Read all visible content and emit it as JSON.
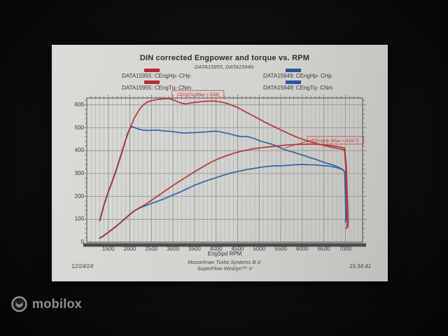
{
  "paper": {
    "title": "DIN corrected Engpower and torque vs. RPM",
    "subtitle": "DATA15955, DATA15949.",
    "footer": {
      "date": "12/24/24",
      "company": "Mosselman Turbo Systems B.V.",
      "software": "SuperFlow WinDyn™ V",
      "time": "15:34:41"
    }
  },
  "legend": {
    "left": [
      {
        "label": "DATA15955: CEngHp-  CHp",
        "color": "#b12f2f"
      },
      {
        "label": "DATA15955: CEngTq-  CNm",
        "color": "#b12f2f"
      }
    ],
    "right": [
      {
        "label": "DATA15949: CEngHp-  CHp",
        "color": "#2a55a0"
      },
      {
        "label": "DATA15949: CEngTq-  CNm",
        "color": "#2a55a0"
      }
    ]
  },
  "watermark": {
    "brand": "mobilox"
  },
  "chart_data": {
    "type": "line",
    "title": "DIN corrected Engpower and torque vs. RPM",
    "xlabel": "EngSpd  RPM",
    "ylabel": "",
    "x_range": [
      1000,
      7400
    ],
    "y_range": [
      0,
      630
    ],
    "x_ticks": [
      1500,
      2000,
      2500,
      3000,
      3500,
      4000,
      4500,
      5000,
      5500,
      6000,
      6500,
      7000
    ],
    "y_ticks": [
      0,
      100,
      200,
      300,
      400,
      500,
      600
    ],
    "grid": "vertical minor every 100 RPM, horizontal every 100 units",
    "legend_position": "top",
    "colors": {
      "red_series": "#b03434",
      "blue_series": "#2f5fa3",
      "annotation": "#c03434",
      "grid_minor": "#acaca8",
      "grid_major": "#8f8f8b",
      "frame": "#55555a",
      "axis_bar": "#4c4c4a"
    },
    "annotations": [
      {
        "text": "CEngTq [Max = 628]",
        "color": "#c03434",
        "rpm": 2980,
        "value": 663,
        "w": 74,
        "h": 11
      },
      {
        "text": "CEngHp [Max = 428.7]",
        "color": "#c03434",
        "rpm": 6120,
        "value": 462,
        "w": 80,
        "h": 11,
        "leader": [
          [
            5600,
            412
          ],
          [
            6280,
            450
          ]
        ]
      }
    ],
    "series": [
      {
        "name": "DATA15949: CEngTq- CNm",
        "color": "#2f5fa3",
        "points": [
          [
            1300,
            93
          ],
          [
            1400,
            162
          ],
          [
            1500,
            219
          ],
          [
            1600,
            269
          ],
          [
            1700,
            323
          ],
          [
            1800,
            383
          ],
          [
            1900,
            446
          ],
          [
            1950,
            477
          ],
          [
            2000,
            497
          ],
          [
            2050,
            505
          ],
          [
            2100,
            502
          ],
          [
            2200,
            494
          ],
          [
            2300,
            490
          ],
          [
            2400,
            488
          ],
          [
            2500,
            489
          ],
          [
            2600,
            490
          ],
          [
            2700,
            488
          ],
          [
            2800,
            486
          ],
          [
            2900,
            485
          ],
          [
            3000,
            483
          ],
          [
            3100,
            480
          ],
          [
            3200,
            478
          ],
          [
            3300,
            477
          ],
          [
            3400,
            478
          ],
          [
            3500,
            479
          ],
          [
            3600,
            480
          ],
          [
            3700,
            481
          ],
          [
            3800,
            482
          ],
          [
            3900,
            484
          ],
          [
            4000,
            485
          ],
          [
            4100,
            482
          ],
          [
            4200,
            478
          ],
          [
            4300,
            474
          ],
          [
            4400,
            469
          ],
          [
            4500,
            464
          ],
          [
            4600,
            461
          ],
          [
            4700,
            462
          ],
          [
            4800,
            458
          ],
          [
            4900,
            452
          ],
          [
            5000,
            444
          ],
          [
            5100,
            438
          ],
          [
            5200,
            433
          ],
          [
            5300,
            428
          ],
          [
            5400,
            420
          ],
          [
            5500,
            412
          ],
          [
            5600,
            404
          ],
          [
            5700,
            398
          ],
          [
            5800,
            393
          ],
          [
            5900,
            387
          ],
          [
            6000,
            381
          ],
          [
            6100,
            375
          ],
          [
            6200,
            368
          ],
          [
            6300,
            363
          ],
          [
            6400,
            356
          ],
          [
            6500,
            349
          ],
          [
            6600,
            343
          ],
          [
            6700,
            338
          ],
          [
            6800,
            331
          ],
          [
            6900,
            322
          ],
          [
            6950,
            316
          ],
          [
            6985,
            305
          ],
          [
            7000,
            200
          ],
          [
            7010,
            105
          ],
          [
            6998,
            88
          ]
        ]
      },
      {
        "name": "DATA15949: CEngHp- CHp",
        "color": "#2f5fa3",
        "points": [
          [
            1300,
            17
          ],
          [
            1400,
            29
          ],
          [
            1500,
            43
          ],
          [
            1600,
            57
          ],
          [
            1700,
            72
          ],
          [
            1800,
            88
          ],
          [
            1900,
            104
          ],
          [
            2000,
            121
          ],
          [
            2100,
            136
          ],
          [
            2200,
            147
          ],
          [
            2300,
            155
          ],
          [
            2400,
            162
          ],
          [
            2500,
            169
          ],
          [
            2600,
            176
          ],
          [
            2700,
            183
          ],
          [
            2800,
            190
          ],
          [
            2900,
            198
          ],
          [
            3000,
            206
          ],
          [
            3100,
            214
          ],
          [
            3200,
            222
          ],
          [
            3300,
            231
          ],
          [
            3400,
            240
          ],
          [
            3500,
            249
          ],
          [
            3600,
            256
          ],
          [
            3700,
            263
          ],
          [
            3800,
            270
          ],
          [
            3900,
            276
          ],
          [
            4000,
            282
          ],
          [
            4100,
            288
          ],
          [
            4200,
            294
          ],
          [
            4300,
            300
          ],
          [
            4400,
            305
          ],
          [
            4500,
            309
          ],
          [
            4600,
            313
          ],
          [
            4700,
            317
          ],
          [
            4800,
            320
          ],
          [
            4900,
            323
          ],
          [
            5000,
            326
          ],
          [
            5100,
            329
          ],
          [
            5200,
            331
          ],
          [
            5300,
            333
          ],
          [
            5400,
            334
          ],
          [
            5500,
            333
          ],
          [
            5600,
            335
          ],
          [
            5700,
            336
          ],
          [
            5800,
            338
          ],
          [
            5900,
            339
          ],
          [
            6000,
            340
          ],
          [
            6100,
            339
          ],
          [
            6200,
            338
          ],
          [
            6300,
            338
          ],
          [
            6400,
            336
          ],
          [
            6500,
            334
          ],
          [
            6600,
            333
          ],
          [
            6700,
            330
          ],
          [
            6800,
            326
          ],
          [
            6900,
            320
          ],
          [
            6950,
            315
          ],
          [
            6985,
            306
          ],
          [
            7005,
            200
          ],
          [
            7015,
            108
          ],
          [
            7003,
            90
          ]
        ]
      },
      {
        "name": "DATA15955: CEngTq- CNm",
        "color": "#b03434",
        "points": [
          [
            1300,
            95
          ],
          [
            1400,
            165
          ],
          [
            1500,
            222
          ],
          [
            1600,
            272
          ],
          [
            1700,
            326
          ],
          [
            1800,
            386
          ],
          [
            1900,
            446
          ],
          [
            2000,
            498
          ],
          [
            2100,
            541
          ],
          [
            2200,
            574
          ],
          [
            2300,
            598
          ],
          [
            2400,
            612
          ],
          [
            2500,
            618
          ],
          [
            2600,
            622
          ],
          [
            2700,
            625
          ],
          [
            2800,
            627
          ],
          [
            2900,
            628
          ],
          [
            3000,
            622
          ],
          [
            3100,
            614
          ],
          [
            3200,
            607
          ],
          [
            3300,
            604
          ],
          [
            3400,
            608
          ],
          [
            3500,
            611
          ],
          [
            3600,
            613
          ],
          [
            3700,
            615
          ],
          [
            3800,
            616
          ],
          [
            3900,
            617
          ],
          [
            4000,
            616
          ],
          [
            4100,
            613
          ],
          [
            4200,
            609
          ],
          [
            4300,
            603
          ],
          [
            4400,
            596
          ],
          [
            4500,
            588
          ],
          [
            4600,
            578
          ],
          [
            4700,
            568
          ],
          [
            4800,
            558
          ],
          [
            4900,
            548
          ],
          [
            5000,
            538
          ],
          [
            5100,
            528
          ],
          [
            5200,
            518
          ],
          [
            5300,
            509
          ],
          [
            5400,
            500
          ],
          [
            5500,
            491
          ],
          [
            5600,
            482
          ],
          [
            5700,
            473
          ],
          [
            5800,
            465
          ],
          [
            5900,
            457
          ],
          [
            6000,
            450
          ],
          [
            6100,
            444
          ],
          [
            6200,
            438
          ],
          [
            6300,
            433
          ],
          [
            6400,
            428
          ],
          [
            6500,
            423
          ],
          [
            6600,
            418
          ],
          [
            6700,
            414
          ],
          [
            6800,
            410
          ],
          [
            6900,
            407
          ],
          [
            6980,
            403
          ],
          [
            7010,
            330
          ],
          [
            7030,
            190
          ],
          [
            7045,
            95
          ],
          [
            7040,
            68
          ],
          [
            7025,
            60
          ]
        ]
      },
      {
        "name": "DATA15955: CEngHp- CHp",
        "color": "#b03434",
        "points": [
          [
            1300,
            18
          ],
          [
            1400,
            30
          ],
          [
            1500,
            44
          ],
          [
            1600,
            58
          ],
          [
            1700,
            73
          ],
          [
            1800,
            89
          ],
          [
            1900,
            106
          ],
          [
            2000,
            122
          ],
          [
            2100,
            137
          ],
          [
            2200,
            148
          ],
          [
            2300,
            158
          ],
          [
            2400,
            170
          ],
          [
            2500,
            183
          ],
          [
            2600,
            196
          ],
          [
            2700,
            209
          ],
          [
            2800,
            222
          ],
          [
            2900,
            235
          ],
          [
            3000,
            248
          ],
          [
            3100,
            260
          ],
          [
            3200,
            272
          ],
          [
            3300,
            284
          ],
          [
            3400,
            296
          ],
          [
            3500,
            308
          ],
          [
            3600,
            319
          ],
          [
            3700,
            330
          ],
          [
            3800,
            341
          ],
          [
            3900,
            351
          ],
          [
            4000,
            360
          ],
          [
            4100,
            368
          ],
          [
            4200,
            375
          ],
          [
            4300,
            382
          ],
          [
            4400,
            388
          ],
          [
            4500,
            393
          ],
          [
            4600,
            398
          ],
          [
            4700,
            402
          ],
          [
            4800,
            406
          ],
          [
            4900,
            409
          ],
          [
            5000,
            412
          ],
          [
            5100,
            414
          ],
          [
            5200,
            416
          ],
          [
            5300,
            418
          ],
          [
            5400,
            420
          ],
          [
            5500,
            422
          ],
          [
            5600,
            424
          ],
          [
            5700,
            425
          ],
          [
            5800,
            426
          ],
          [
            5900,
            427
          ],
          [
            6000,
            428
          ],
          [
            6100,
            428
          ],
          [
            6200,
            429
          ],
          [
            6300,
            428
          ],
          [
            6400,
            427
          ],
          [
            6500,
            425
          ],
          [
            6600,
            423
          ],
          [
            6700,
            421
          ],
          [
            6800,
            418
          ],
          [
            6900,
            415
          ],
          [
            6980,
            411
          ],
          [
            7020,
            340
          ],
          [
            7050,
            180
          ],
          [
            7065,
            90
          ],
          [
            7055,
            65
          ]
        ]
      }
    ]
  }
}
